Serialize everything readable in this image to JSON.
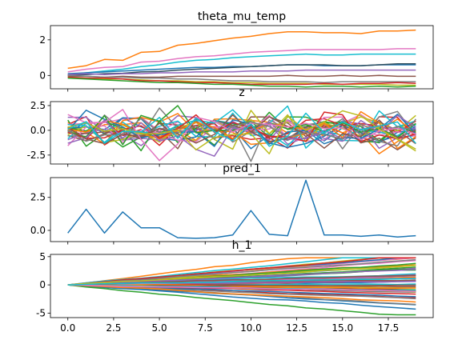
{
  "chart_data": [
    {
      "type": "line",
      "title": "theta_mu_temp",
      "x": [
        0,
        1,
        2,
        3,
        4,
        5,
        6,
        7,
        8,
        9,
        10,
        11,
        12,
        13,
        14,
        15,
        16,
        17,
        18,
        19
      ],
      "ylim": [
        -0.75,
        2.8
      ],
      "yticks": [
        0,
        2
      ],
      "show_xticklabels": false,
      "series": [
        {
          "color": "#ff7f0e",
          "values": [
            0.4,
            0.55,
            0.9,
            0.85,
            1.3,
            1.35,
            1.7,
            1.8,
            1.95,
            2.1,
            2.2,
            2.35,
            2.45,
            2.45,
            2.4,
            2.4,
            2.35,
            2.5,
            2.5,
            2.55
          ]
        },
        {
          "color": "#e377c2",
          "values": [
            0.2,
            0.35,
            0.45,
            0.5,
            0.75,
            0.8,
            0.95,
            1.05,
            1.1,
            1.2,
            1.3,
            1.35,
            1.4,
            1.45,
            1.45,
            1.45,
            1.45,
            1.45,
            1.5,
            1.5
          ]
        },
        {
          "color": "#17becf",
          "values": [
            0.05,
            0.15,
            0.25,
            0.35,
            0.5,
            0.6,
            0.75,
            0.85,
            0.9,
            1.0,
            1.05,
            1.1,
            1.15,
            1.2,
            1.15,
            1.15,
            1.2,
            1.2,
            1.2,
            1.2
          ]
        },
        {
          "color": "#1f77b4",
          "values": [
            0.1,
            0.15,
            0.2,
            0.25,
            0.3,
            0.35,
            0.4,
            0.45,
            0.45,
            0.5,
            0.5,
            0.55,
            0.6,
            0.6,
            0.55,
            0.55,
            0.55,
            0.6,
            0.6,
            0.6
          ]
        },
        {
          "color": "#2f4f5f",
          "values": [
            0.0,
            0.05,
            0.1,
            0.12,
            0.2,
            0.22,
            0.3,
            0.35,
            0.4,
            0.45,
            0.5,
            0.55,
            0.6,
            0.6,
            0.6,
            0.55,
            0.55,
            0.6,
            0.65,
            0.65
          ]
        },
        {
          "color": "#9467bd",
          "values": [
            0.05,
            0.1,
            0.05,
            0.1,
            0.1,
            0.15,
            0.15,
            0.2,
            0.2,
            0.2,
            0.25,
            0.25,
            0.25,
            0.3,
            0.3,
            0.3,
            0.3,
            0.3,
            0.3,
            0.3
          ]
        },
        {
          "color": "#8c564b",
          "values": [
            -0.05,
            -0.05,
            -0.1,
            -0.05,
            -0.1,
            -0.1,
            -0.05,
            -0.05,
            -0.05,
            -0.05,
            -0.05,
            -0.05,
            0.0,
            -0.05,
            -0.05,
            0.0,
            -0.05,
            0.0,
            -0.05,
            -0.05
          ]
        },
        {
          "color": "#7f7f7f",
          "values": [
            0.0,
            -0.05,
            -0.1,
            -0.1,
            -0.15,
            -0.15,
            -0.2,
            -0.2,
            -0.25,
            -0.3,
            -0.3,
            -0.35,
            -0.35,
            -0.35,
            -0.4,
            -0.35,
            -0.35,
            -0.35,
            -0.35,
            -0.35
          ]
        },
        {
          "color": "#bcbd22",
          "values": [
            -0.1,
            -0.15,
            -0.2,
            -0.2,
            -0.25,
            -0.3,
            -0.3,
            -0.35,
            -0.35,
            -0.4,
            -0.4,
            -0.45,
            -0.45,
            -0.45,
            -0.5,
            -0.5,
            -0.5,
            -0.5,
            -0.55,
            -0.55
          ]
        },
        {
          "color": "#d62728",
          "values": [
            -0.1,
            -0.15,
            -0.15,
            -0.2,
            -0.3,
            -0.3,
            -0.35,
            -0.4,
            -0.4,
            -0.45,
            -0.5,
            -0.5,
            -0.5,
            -0.5,
            -0.45,
            -0.5,
            -0.45,
            -0.45,
            -0.4,
            -0.45
          ]
        },
        {
          "color": "#2ca02c",
          "values": [
            -0.15,
            -0.2,
            -0.25,
            -0.3,
            -0.35,
            -0.4,
            -0.4,
            -0.45,
            -0.5,
            -0.5,
            -0.55,
            -0.6,
            -0.6,
            -0.65,
            -0.6,
            -0.6,
            -0.65,
            -0.6,
            -0.65,
            -0.6
          ]
        }
      ]
    },
    {
      "type": "line",
      "title": "z",
      "x": [
        0,
        1,
        2,
        3,
        4,
        5,
        6,
        7,
        8,
        9,
        10,
        11,
        12,
        13,
        14,
        15,
        16,
        17,
        18,
        19
      ],
      "ylim": [
        -3.4,
        2.9
      ],
      "yticks": [
        -2.5,
        0.0,
        2.5
      ],
      "show_xticklabels": false,
      "series_note": "",
      "series": []
    },
    {
      "type": "line",
      "title": "pred_1",
      "x": [
        0,
        1,
        2,
        3,
        4,
        5,
        6,
        7,
        8,
        9,
        10,
        11,
        12,
        13,
        14,
        15,
        16,
        17,
        18,
        19
      ],
      "ylim": [
        -0.85,
        4.0
      ],
      "yticks": [
        0.0,
        2.5
      ],
      "show_xticklabels": false,
      "series": [
        {
          "color": "#1f77b4",
          "values": [
            -0.2,
            1.6,
            -0.2,
            1.4,
            0.2,
            0.2,
            -0.55,
            -0.6,
            -0.55,
            -0.35,
            1.5,
            -0.3,
            -0.4,
            3.8,
            -0.35,
            -0.35,
            -0.45,
            -0.35,
            -0.5,
            -0.4
          ]
        }
      ]
    },
    {
      "type": "line",
      "title": "h_1",
      "x": [
        0,
        1,
        2,
        3,
        4,
        5,
        6,
        7,
        8,
        9,
        10,
        11,
        12,
        13,
        14,
        15,
        16,
        17,
        18,
        19
      ],
      "ylim": [
        -5.8,
        5.4
      ],
      "yticks": [
        -5,
        0,
        5
      ],
      "xlim": [
        -0.95,
        19.95
      ],
      "xticks": [
        0.0,
        2.5,
        5.0,
        7.5,
        10.0,
        12.5,
        15.0,
        17.5
      ],
      "show_xticklabels": true,
      "series": []
    }
  ]
}
